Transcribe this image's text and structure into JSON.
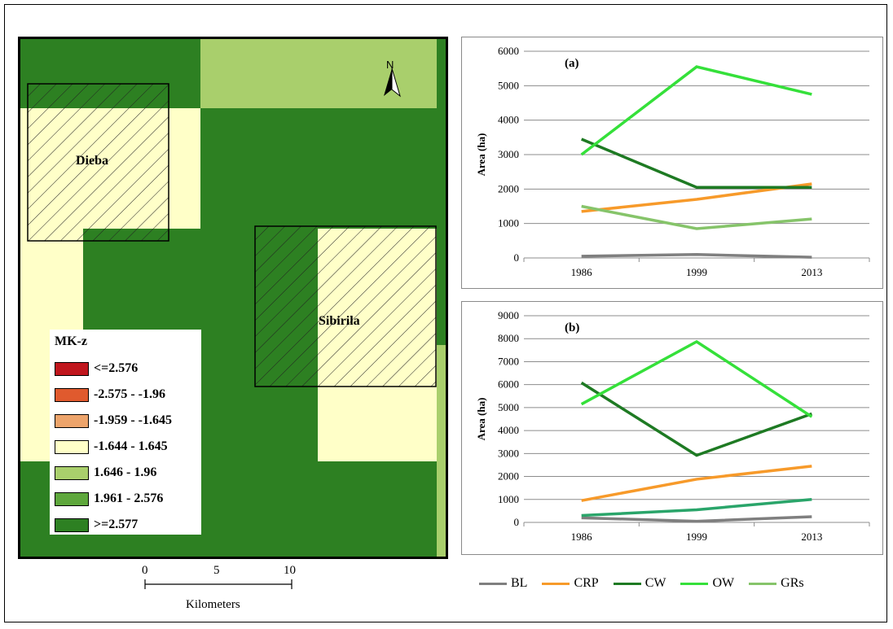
{
  "map": {
    "sites": [
      "Dieba",
      "Sibirila"
    ],
    "north_label": "N",
    "legend": {
      "title": "MK-z",
      "classes": [
        {
          "label": "<=2.576",
          "color": "#c0161d"
        },
        {
          "label": "-2.575 - -1.96",
          "color": "#e05a2e"
        },
        {
          "label": "-1.959 - -1.645",
          "color": "#eda46b"
        },
        {
          "label": "-1.644 - 1.645",
          "color": "#ffffc8"
        },
        {
          "label": "1.646 - 1.96",
          "color": "#a9cf6c"
        },
        {
          "label": "1.961 - 2.576",
          "color": "#5ea73c"
        },
        {
          "label": ">=2.577",
          "color": "#2d8022"
        }
      ]
    },
    "scale": {
      "ticks": [
        "0",
        "5",
        "10"
      ],
      "unit": "Kilometers"
    }
  },
  "chart_data": [
    {
      "type": "line",
      "panel_label": "(a)",
      "ylabel": "Area (ha)",
      "categories": [
        "1986",
        "1999",
        "2013"
      ],
      "ylim": [
        0,
        6000
      ],
      "yticks": [
        "0",
        "1000",
        "2000",
        "3000",
        "4000",
        "5000",
        "6000"
      ],
      "grid": true,
      "series": [
        {
          "name": "BL",
          "values": [
            50,
            100,
            20
          ],
          "color": "#7f7f7f"
        },
        {
          "name": "CRP",
          "values": [
            1350,
            1700,
            2150
          ],
          "color": "#f79a2a"
        },
        {
          "name": "CW",
          "values": [
            3450,
            2050,
            2050
          ],
          "color": "#1e7a23"
        },
        {
          "name": "OW",
          "values": [
            3000,
            5550,
            4750
          ],
          "color": "#35e03a"
        },
        {
          "name": "GRs",
          "values": [
            1500,
            850,
            1130
          ],
          "color": "#86c46a"
        }
      ]
    },
    {
      "type": "line",
      "panel_label": "(b)",
      "ylabel": "Area (ha)",
      "categories": [
        "1986",
        "1999",
        "2013"
      ],
      "ylim": [
        0,
        9000
      ],
      "yticks": [
        "0",
        "1000",
        "2000",
        "3000",
        "4000",
        "5000",
        "6000",
        "7000",
        "8000",
        "9000"
      ],
      "grid": true,
      "series": [
        {
          "name": "BL",
          "values": [
            200,
            50,
            250
          ],
          "color": "#7f7f7f"
        },
        {
          "name": "CRP",
          "values": [
            950,
            1880,
            2450
          ],
          "color": "#f79a2a"
        },
        {
          "name": "CW",
          "values": [
            6080,
            2920,
            4730
          ],
          "color": "#1e7a23"
        },
        {
          "name": "OW",
          "values": [
            5150,
            7870,
            4600
          ],
          "color": "#35e03a"
        },
        {
          "name": "GRs",
          "values": [
            300,
            550,
            1000
          ],
          "color": "#2aa56a"
        }
      ]
    }
  ],
  "series_legend": [
    {
      "name": "BL",
      "color": "#7f7f7f"
    },
    {
      "name": "CRP",
      "color": "#f79a2a"
    },
    {
      "name": "CW",
      "color": "#1e7a23"
    },
    {
      "name": "OW",
      "color": "#35e03a"
    },
    {
      "name": "GRs",
      "color": "#86c46a"
    }
  ]
}
